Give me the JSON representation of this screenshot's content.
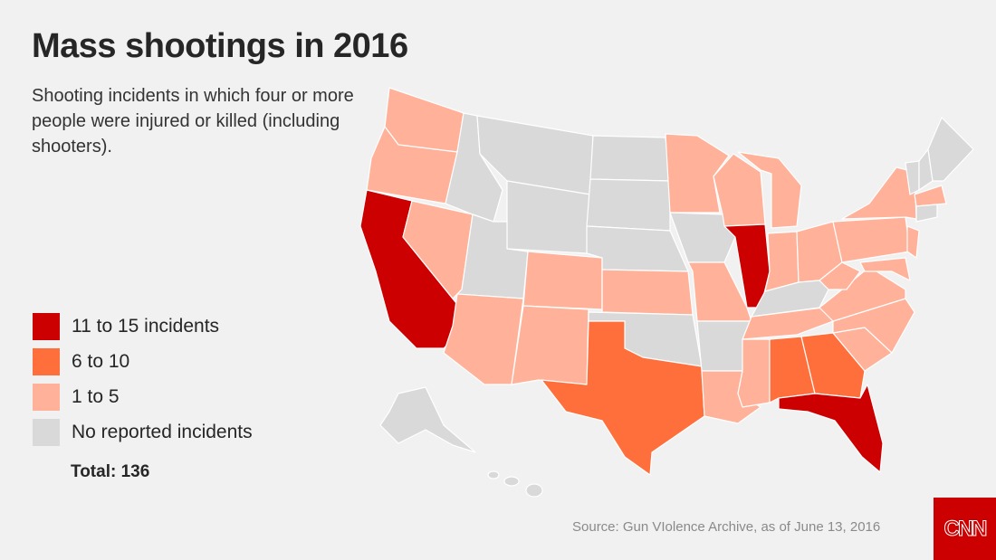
{
  "title": "Mass shootings in 2016",
  "subtitle": "Shooting incidents in which four or more people were injured or killed (including shooters).",
  "legend": [
    {
      "label": "11 to 15 incidents",
      "color": "#cc0000",
      "key": "high"
    },
    {
      "label": "6 to 10",
      "color": "#ff6f3c",
      "key": "mid"
    },
    {
      "label": "1 to 5",
      "color": "#ffb299",
      "key": "low"
    },
    {
      "label": "No reported incidents",
      "color": "#d9d9d9",
      "key": "none"
    }
  ],
  "total": "Total: 136",
  "source": "Source: Gun VIolence Archive, as of June 13, 2016",
  "logo": "CNN",
  "map": {
    "states": {
      "CA": "high",
      "IL": "high",
      "FL": "high",
      "TX": "mid",
      "AL": "mid",
      "GA": "mid",
      "WA": "low",
      "OR": "low",
      "NV": "low",
      "AZ": "low",
      "CO": "low",
      "NM": "low",
      "KS": "low",
      "MO": "low",
      "MN": "low",
      "WI": "low",
      "MI": "low",
      "IN": "low",
      "OH": "low",
      "PA": "low",
      "NY": "low",
      "NJ": "low",
      "MD": "low",
      "VA": "low",
      "WV": "low",
      "NC": "low",
      "SC": "low",
      "TN": "low",
      "MS": "low",
      "LA": "low",
      "MA": "low",
      "ID": "none",
      "MT": "none",
      "WY": "none",
      "UT": "none",
      "ND": "none",
      "SD": "none",
      "NE": "none",
      "OK": "none",
      "IA": "none",
      "AR": "none",
      "KY": "none",
      "VT": "none",
      "NH": "none",
      "ME": "none",
      "CT": "none",
      "AK": "none",
      "HI": "none"
    }
  }
}
